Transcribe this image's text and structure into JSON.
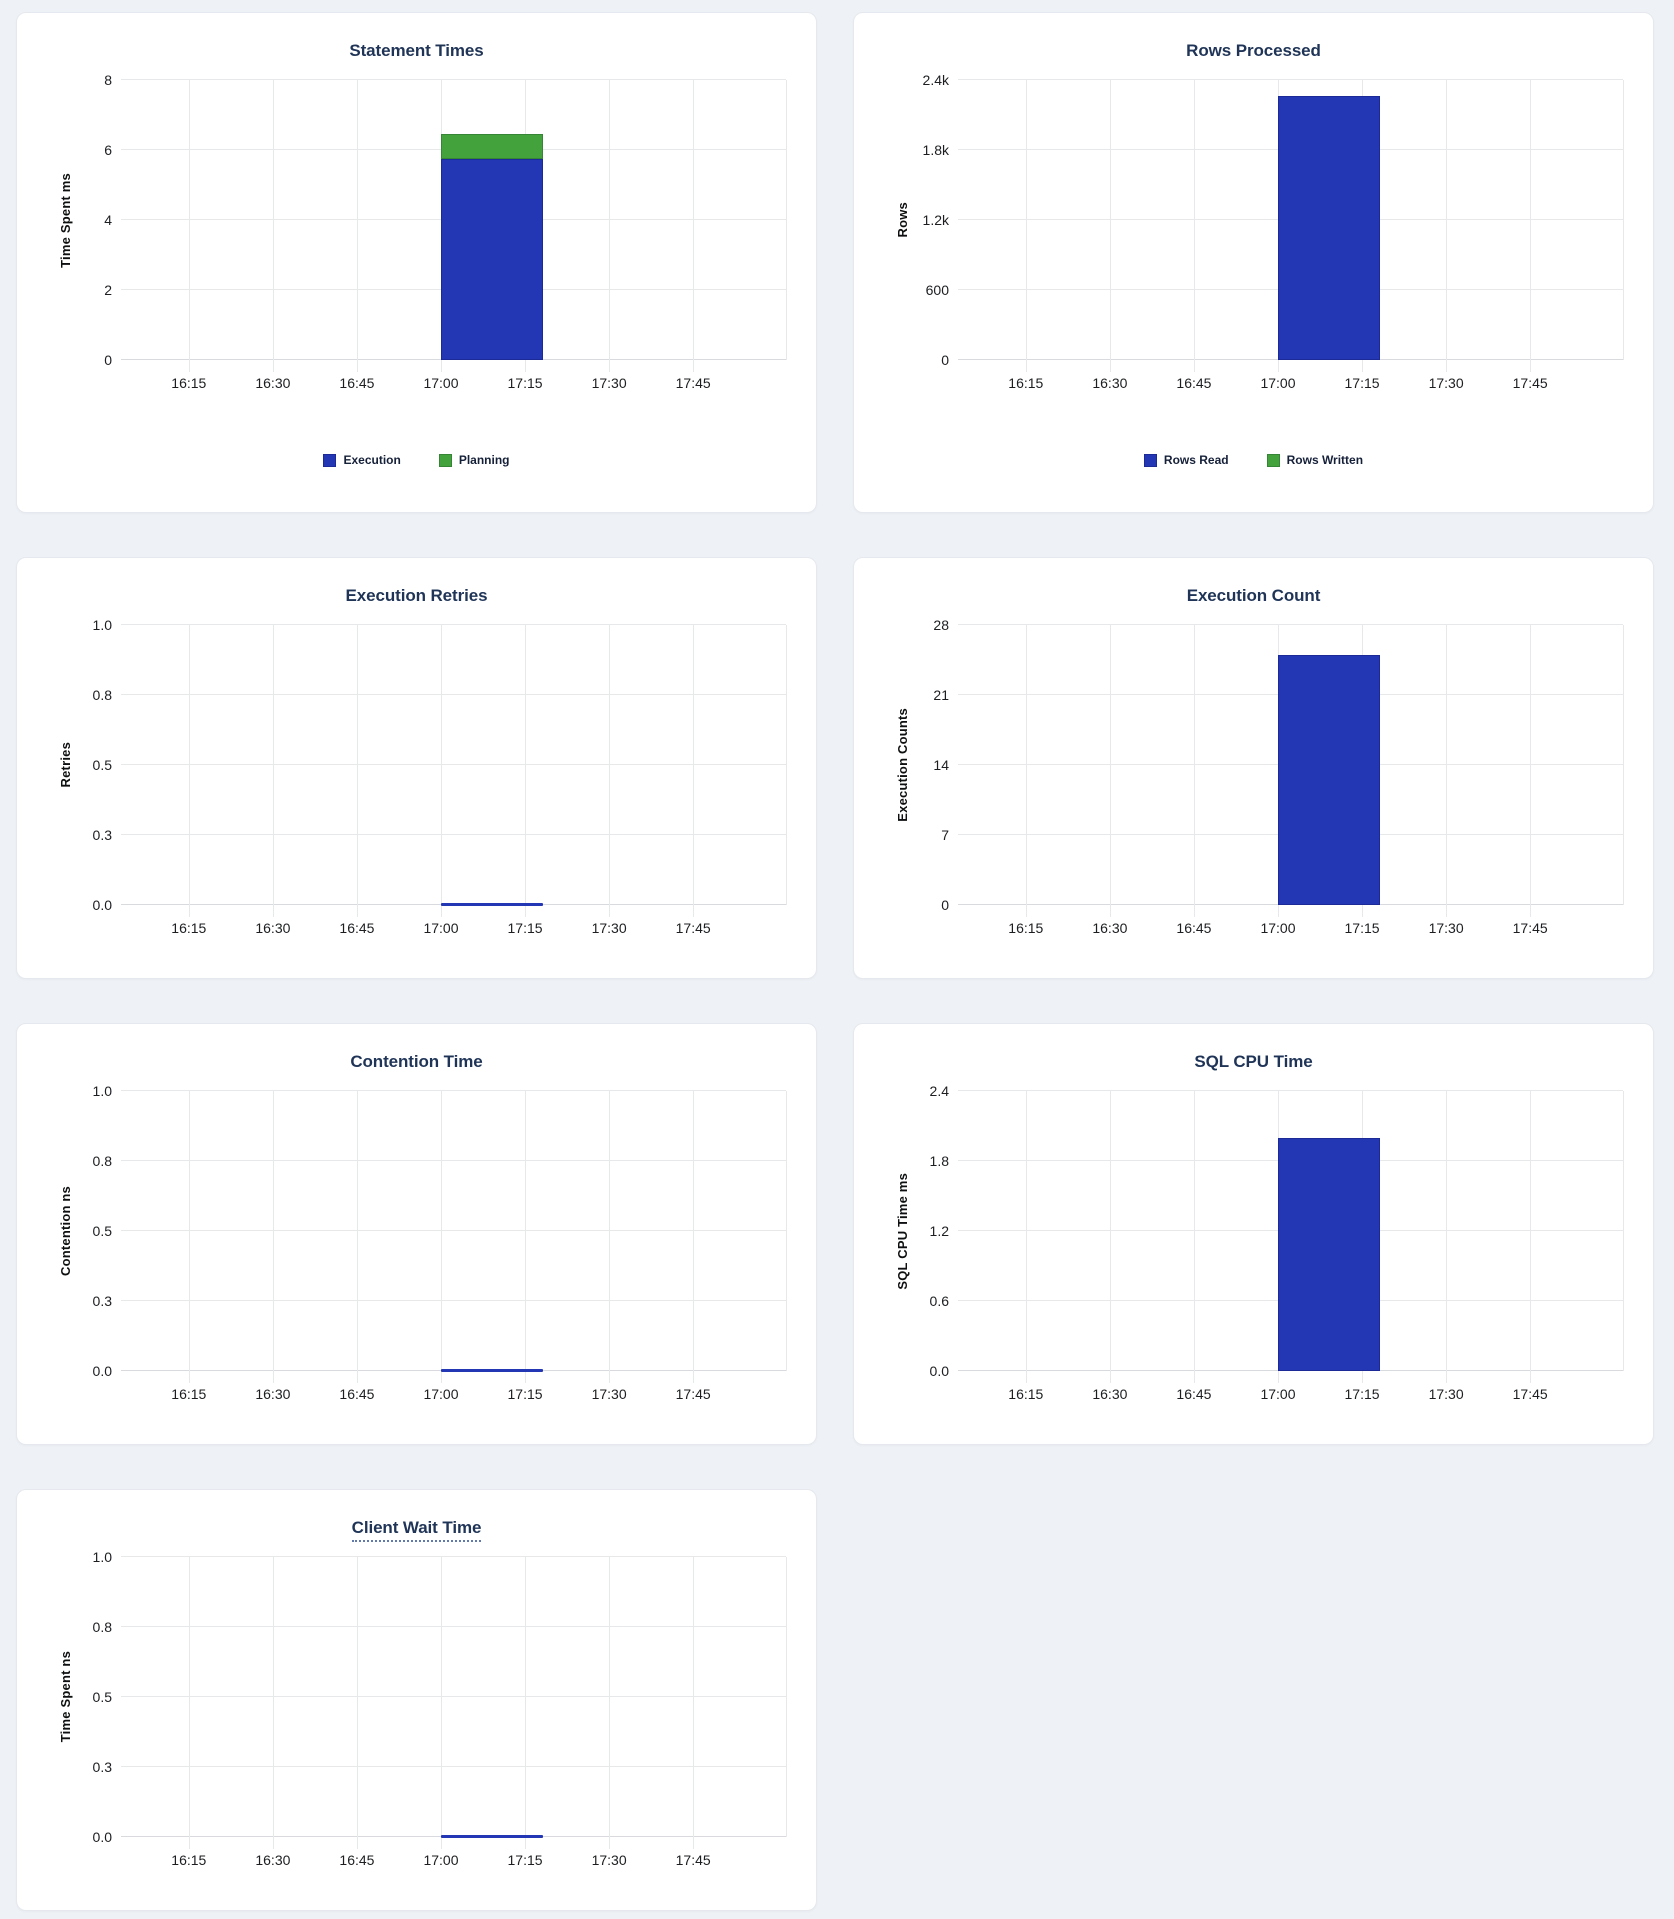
{
  "page": {
    "background_color": "#eef2f6",
    "card_color": "#ffffff",
    "title_color": "#1f3457",
    "accent_blue": "#2336b4",
    "accent_green": "#43a23c"
  },
  "chart_data": [
    {
      "type": "bar",
      "title": "Statement Times",
      "ylabel": "Time Spent ms",
      "ymax": 8,
      "yticks": [
        "0",
        "2",
        "4",
        "6",
        "8"
      ],
      "xticks": [
        "16:15",
        "16:30",
        "16:45",
        "17:00",
        "17:15",
        "17:30",
        "17:45"
      ],
      "bar_interval": [
        "17:00",
        "17:15"
      ],
      "stacked": true,
      "grid": true,
      "legend": true,
      "legend_position": "bottom-center",
      "series": [
        {
          "name": "Execution",
          "value": 5.75,
          "color": "#2336b4",
          "border": "#1b2a96"
        },
        {
          "name": "Planning",
          "value": 0.7,
          "color": "#43a23c",
          "border": "#368536"
        }
      ]
    },
    {
      "type": "bar",
      "title": "Rows Processed",
      "ylabel": "Rows",
      "ymax": 2400,
      "yticks": [
        "0",
        "600",
        "1.2k",
        "1.8k",
        "2.4k"
      ],
      "xticks": [
        "16:15",
        "16:30",
        "16:45",
        "17:00",
        "17:15",
        "17:30",
        "17:45"
      ],
      "bar_interval": [
        "17:00",
        "17:15"
      ],
      "stacked": true,
      "grid": true,
      "legend": true,
      "legend_position": "bottom-center",
      "series": [
        {
          "name": "Rows Read",
          "value": 2260,
          "color": "#2336b4",
          "border": "#1b2a96"
        },
        {
          "name": "Rows Written",
          "value": 0,
          "color": "#43a23c",
          "border": "#368536"
        }
      ]
    },
    {
      "type": "bar",
      "title": "Execution Retries",
      "ylabel": "Retries",
      "ymax": 1.0,
      "yticks": [
        "0.0",
        "0.3",
        "0.5",
        "0.8",
        "1.0"
      ],
      "xticks": [
        "16:15",
        "16:30",
        "16:45",
        "17:00",
        "17:15",
        "17:30",
        "17:45"
      ],
      "bar_interval": [
        "17:00",
        "17:15"
      ],
      "stacked": false,
      "grid": true,
      "legend": false,
      "series": [
        {
          "name": "Retries",
          "value": 0,
          "color": "#2336b4",
          "border": "#1b2a96"
        }
      ]
    },
    {
      "type": "bar",
      "title": "Execution Count",
      "ylabel": "Execution Counts",
      "ymax": 28,
      "yticks": [
        "0",
        "7",
        "14",
        "21",
        "28"
      ],
      "xticks": [
        "16:15",
        "16:30",
        "16:45",
        "17:00",
        "17:15",
        "17:30",
        "17:45"
      ],
      "bar_interval": [
        "17:00",
        "17:15"
      ],
      "stacked": false,
      "grid": true,
      "legend": false,
      "series": [
        {
          "name": "Execution Count",
          "value": 25,
          "color": "#2336b4",
          "border": "#1b2a96"
        }
      ]
    },
    {
      "type": "bar",
      "title": "Contention Time",
      "ylabel": "Contention ns",
      "ymax": 1.0,
      "yticks": [
        "0.0",
        "0.3",
        "0.5",
        "0.8",
        "1.0"
      ],
      "xticks": [
        "16:15",
        "16:30",
        "16:45",
        "17:00",
        "17:15",
        "17:30",
        "17:45"
      ],
      "bar_interval": [
        "17:00",
        "17:15"
      ],
      "stacked": false,
      "grid": true,
      "legend": false,
      "series": [
        {
          "name": "Contention",
          "value": 0,
          "color": "#2336b4",
          "border": "#1b2a96"
        }
      ]
    },
    {
      "type": "bar",
      "title": "SQL CPU Time",
      "ylabel": "SQL CPU Time ms",
      "ymax": 2.4,
      "yticks": [
        "0.0",
        "0.6",
        "1.2",
        "1.8",
        "2.4"
      ],
      "xticks": [
        "16:15",
        "16:30",
        "16:45",
        "17:00",
        "17:15",
        "17:30",
        "17:45"
      ],
      "bar_interval": [
        "17:00",
        "17:15"
      ],
      "stacked": false,
      "grid": true,
      "legend": false,
      "series": [
        {
          "name": "SQL CPU Time",
          "value": 2.0,
          "color": "#2336b4",
          "border": "#1b2a96"
        }
      ]
    },
    {
      "type": "bar",
      "title": "Client Wait Time",
      "title_has_tooltip_underline": true,
      "ylabel": "Time Spent ns",
      "ymax": 1.0,
      "yticks": [
        "0.0",
        "0.3",
        "0.5",
        "0.8",
        "1.0"
      ],
      "xticks": [
        "16:15",
        "16:30",
        "16:45",
        "17:00",
        "17:15",
        "17:30",
        "17:45"
      ],
      "bar_interval": [
        "17:00",
        "17:15"
      ],
      "stacked": false,
      "grid": true,
      "legend": false,
      "series": [
        {
          "name": "Client Wait",
          "value": 0,
          "color": "#2336b4",
          "border": "#1b2a96"
        }
      ]
    }
  ]
}
